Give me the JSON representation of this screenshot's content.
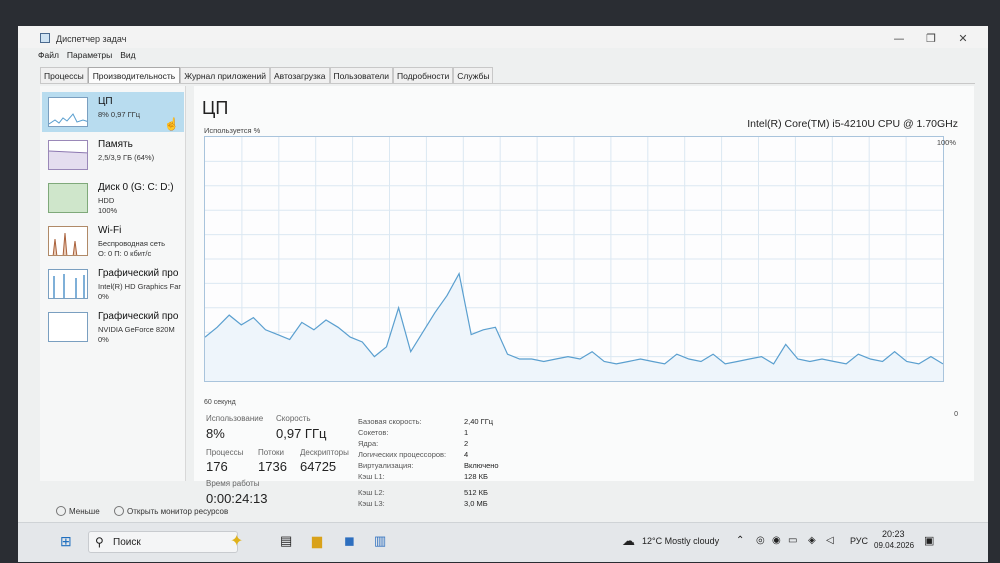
{
  "window": {
    "title": "Диспетчер задач",
    "min": "—",
    "restore": "❐",
    "close": "✕"
  },
  "menu": [
    "Файл",
    "Параметры",
    "Вид"
  ],
  "tabs": [
    "Процессы",
    "Производительность",
    "Журнал приложений",
    "Автозагрузка",
    "Пользователи",
    "Подробности",
    "Службы"
  ],
  "sidebar": [
    {
      "title": "ЦП",
      "sub1": "8% 0,97 ГГц",
      "sub2": ""
    },
    {
      "title": "Память",
      "sub1": "2,5/3,9 ГБ (64%)",
      "sub2": ""
    },
    {
      "title": "Диск 0 (G: C: D:)",
      "sub1": "HDD",
      "sub2": "100%"
    },
    {
      "title": "Wi-Fi",
      "sub1": "Беспроводная сеть",
      "sub2": "О: 0 П: 0 кбит/с"
    },
    {
      "title": "Графический про",
      "sub1": "Intel(R) HD Graphics Far",
      "sub2": "0%"
    },
    {
      "title": "Графический про",
      "sub1": "NVIDIA GeForce 820M",
      "sub2": "0%"
    }
  ],
  "main": {
    "title": "ЦП",
    "cpu_name": "Intel(R) Core(TM) i5-4210U CPU @ 1.70GHz",
    "usage_label": "Используется %",
    "max_label": "100%",
    "seconds_label": "60 секунд",
    "zero_label": "0"
  },
  "stats": {
    "usage_label": "Использование",
    "usage_value": "8%",
    "speed_label": "Скорость",
    "speed_value": "0,97 ГГц",
    "proc_label": "Процессы",
    "proc_value": "176",
    "threads_label": "Потоки",
    "threads_value": "1736",
    "handles_label": "Дескрипторы",
    "handles_value": "64725",
    "uptime_label": "Время работы",
    "uptime_value": "0:00:24:13"
  },
  "details": [
    {
      "k": "Базовая скорость:",
      "v": "2,40 ГГц"
    },
    {
      "k": "Сокетов:",
      "v": "1"
    },
    {
      "k": "Ядра:",
      "v": "2"
    },
    {
      "k": "Логических процессоров:",
      "v": "4"
    },
    {
      "k": "Виртуализация:",
      "v": "Включено"
    },
    {
      "k": "Кэш L1:",
      "v": "128 КБ"
    },
    {
      "k": "Кэш L2:",
      "v": "512 КБ"
    },
    {
      "k": "Кэш L3:",
      "v": "3,0 МБ"
    }
  ],
  "footer": {
    "less": "Меньше",
    "monitor": "Открыть монитор ресурсов"
  },
  "taskbar": {
    "search": "Поиск",
    "weather": "12°C  Mostly cloudy",
    "lang": "РУС",
    "time": "20:23",
    "date": "09.04.2026"
  },
  "colors": {
    "accent": "#1779ba",
    "graph_line": "#5a9fcf",
    "selected": "#b8dcef"
  },
  "chart_data": {
    "type": "line",
    "x_range_seconds": [
      0,
      60
    ],
    "ylim": [
      0,
      100
    ],
    "values": [
      18,
      22,
      27,
      23,
      26,
      21,
      19,
      17,
      24,
      21,
      25,
      22,
      18,
      16,
      10,
      14,
      30,
      12,
      20,
      28,
      35,
      44,
      19,
      21,
      22,
      11,
      9,
      9,
      8,
      9,
      10,
      9,
      12,
      8,
      7,
      8,
      9,
      8,
      7,
      11,
      9,
      8,
      11,
      7,
      8,
      9,
      10,
      7,
      15,
      9,
      8,
      9,
      8,
      7,
      11,
      9,
      8,
      12,
      8,
      7,
      10,
      7
    ]
  }
}
